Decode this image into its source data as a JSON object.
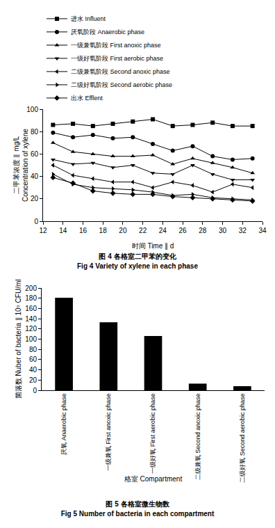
{
  "chart_data": [
    {
      "type": "line",
      "title": "图 4 各格室二甲苯的变化",
      "subtitle": "Fig 4 Variety of xylene in each phase",
      "x_label": "时间 Time ∥ d",
      "y_label": [
        "二甲苯浓度 ∥ mg/L",
        "Concentration of xylene"
      ],
      "x": [
        13,
        15,
        17,
        19,
        21,
        23,
        25,
        27,
        29,
        31,
        33
      ],
      "xlim": [
        12,
        34
      ],
      "xticks": [
        12,
        14,
        16,
        18,
        20,
        22,
        24,
        26,
        28,
        30,
        32,
        34
      ],
      "ylim": [
        0,
        100
      ],
      "yticks": [
        0,
        20,
        40,
        60,
        80,
        100
      ],
      "grid": false,
      "legend": "top left",
      "series": [
        {
          "name": "进水 Influent",
          "color": "#000000",
          "marker": "square",
          "values": [
            86,
            87,
            85,
            87,
            89,
            91,
            85,
            86,
            88,
            85,
            85
          ]
        },
        {
          "name": "厌氧阶段 Anaerobic phase",
          "color": "#000000",
          "marker": "circle",
          "values": [
            79,
            75,
            77,
            74,
            75,
            69,
            63,
            67,
            58,
            55,
            56
          ]
        },
        {
          "name": "一级兼氧阶段 First anoxic phase",
          "color": "#000000",
          "marker": "triangle-up",
          "values": [
            70,
            62,
            60,
            58,
            58,
            59,
            51,
            56,
            52,
            48,
            43
          ]
        },
        {
          "name": "一级好氧阶段 First aerobic phase",
          "color": "#000000",
          "marker": "triangle-down",
          "values": [
            55,
            51,
            52,
            48,
            50,
            43,
            42,
            50,
            42,
            37,
            37
          ]
        },
        {
          "name": "二级兼氧阶段 Second anoxic phase",
          "color": "#000000",
          "marker": "triangle-left",
          "values": [
            50,
            41,
            38,
            35,
            35,
            30,
            35,
            32,
            26,
            33,
            30
          ]
        },
        {
          "name": "二级好氧阶段 Second aerobic phase",
          "color": "#000000",
          "marker": "triangle-right",
          "values": [
            42,
            33,
            30,
            29,
            28,
            26,
            23,
            24,
            21,
            20,
            19
          ]
        },
        {
          "name": "出水 Efflent",
          "color": "#000000",
          "marker": "diamond",
          "values": [
            39,
            34,
            27,
            25,
            24,
            24,
            22,
            21,
            20,
            19,
            18
          ]
        }
      ]
    },
    {
      "type": "bar",
      "title": "图 5 各格室微生物数",
      "subtitle": "Fig 5 Number of bacteria in each compartment",
      "x_label": "格室 Compartment",
      "y_label": [
        "菌落数 Nuber of bacteria ∥ 10⁵ CFU/ml"
      ],
      "categories": [
        "厌氧 Anaerobic phase",
        "一级兼氧 First anoxic phase",
        "一级好氧 First aerobic phase",
        "二级兼氧 Second anoxic phase",
        "二级好氧 Second aerobic phase"
      ],
      "values": [
        181,
        133,
        106,
        13,
        8
      ],
      "color": "#000000",
      "ylim": [
        0,
        200
      ],
      "yticks": [
        0,
        20,
        40,
        60,
        80,
        100,
        120,
        140,
        160,
        180,
        200
      ],
      "grid": false
    }
  ]
}
